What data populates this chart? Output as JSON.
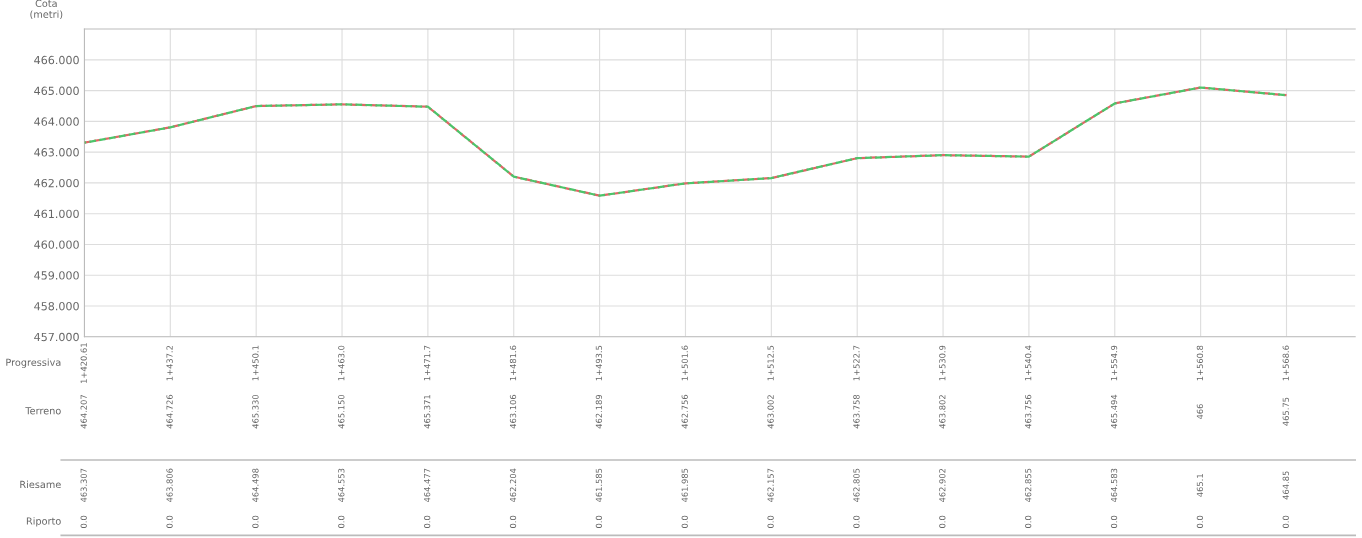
{
  "chart_data": {
    "type": "line",
    "ylabel": "Cota\n(metri)",
    "categories": [
      "1+420.61",
      "1+437.2",
      "1+450.1",
      "1+463.0",
      "1+471.7",
      "1+481.6",
      "1+493.5",
      "1+501.6",
      "1+512.5",
      "1+522.7",
      "1+530.9",
      "1+540.4",
      "1+554.9",
      "1+560.8",
      "1+568.6"
    ],
    "series": [
      {
        "color": "#e06666",
        "values": [
          463.307,
          463.806,
          464.498,
          464.553,
          464.477,
          462.204,
          461.585,
          461.985,
          462.157,
          462.805,
          462.902,
          462.855,
          464.583,
          465.1,
          464.85
        ],
        "value_labels": [
          "463.307",
          "463.806",
          "464.498",
          "464.553",
          "464.477",
          "462.204",
          "461.585",
          "461.985",
          "462.157",
          "462.805",
          "462.902",
          "462.855",
          "464.583",
          "465.1",
          "464.85"
        ]
      },
      {
        "color": "#4cc46a",
        "values": [
          463.307,
          463.806,
          464.498,
          464.553,
          464.477,
          462.204,
          461.585,
          461.985,
          462.157,
          462.805,
          462.902,
          462.855,
          464.583,
          465.1,
          464.85
        ]
      }
    ],
    "ylim": [
      457,
      467
    ],
    "yticks": [
      {
        "value": 457,
        "label": "457.000"
      },
      {
        "value": 458,
        "label": "458.000"
      },
      {
        "value": 459,
        "label": "459.000"
      },
      {
        "value": 460,
        "label": "460.000"
      },
      {
        "value": 461,
        "label": "461.000"
      },
      {
        "value": 462,
        "label": "462.000"
      },
      {
        "value": 463,
        "label": "463.000"
      },
      {
        "value": 464,
        "label": "464.000"
      },
      {
        "value": 465,
        "label": "465.000"
      },
      {
        "value": 466,
        "label": "466.000"
      }
    ],
    "grid": true,
    "line_style": "dashed",
    "annotations": [
      "Progressiva",
      "Terreno",
      "Riesame",
      "Riporto",
      "464.207",
      "464.726",
      "465.330",
      "465.150",
      "465.371",
      "463.106",
      "462.189",
      "462.756",
      "463.002",
      "463.758",
      "463.802",
      "463.756",
      "465.494",
      "466",
      "465.75",
      "0.0",
      "0.0",
      "0.0",
      "0.0",
      "0.0",
      "0.0",
      "0.0",
      "0.0",
      "0.0",
      "0.0",
      "0.0",
      "0.0",
      "0.0",
      "0.0",
      "0.0"
    ]
  }
}
